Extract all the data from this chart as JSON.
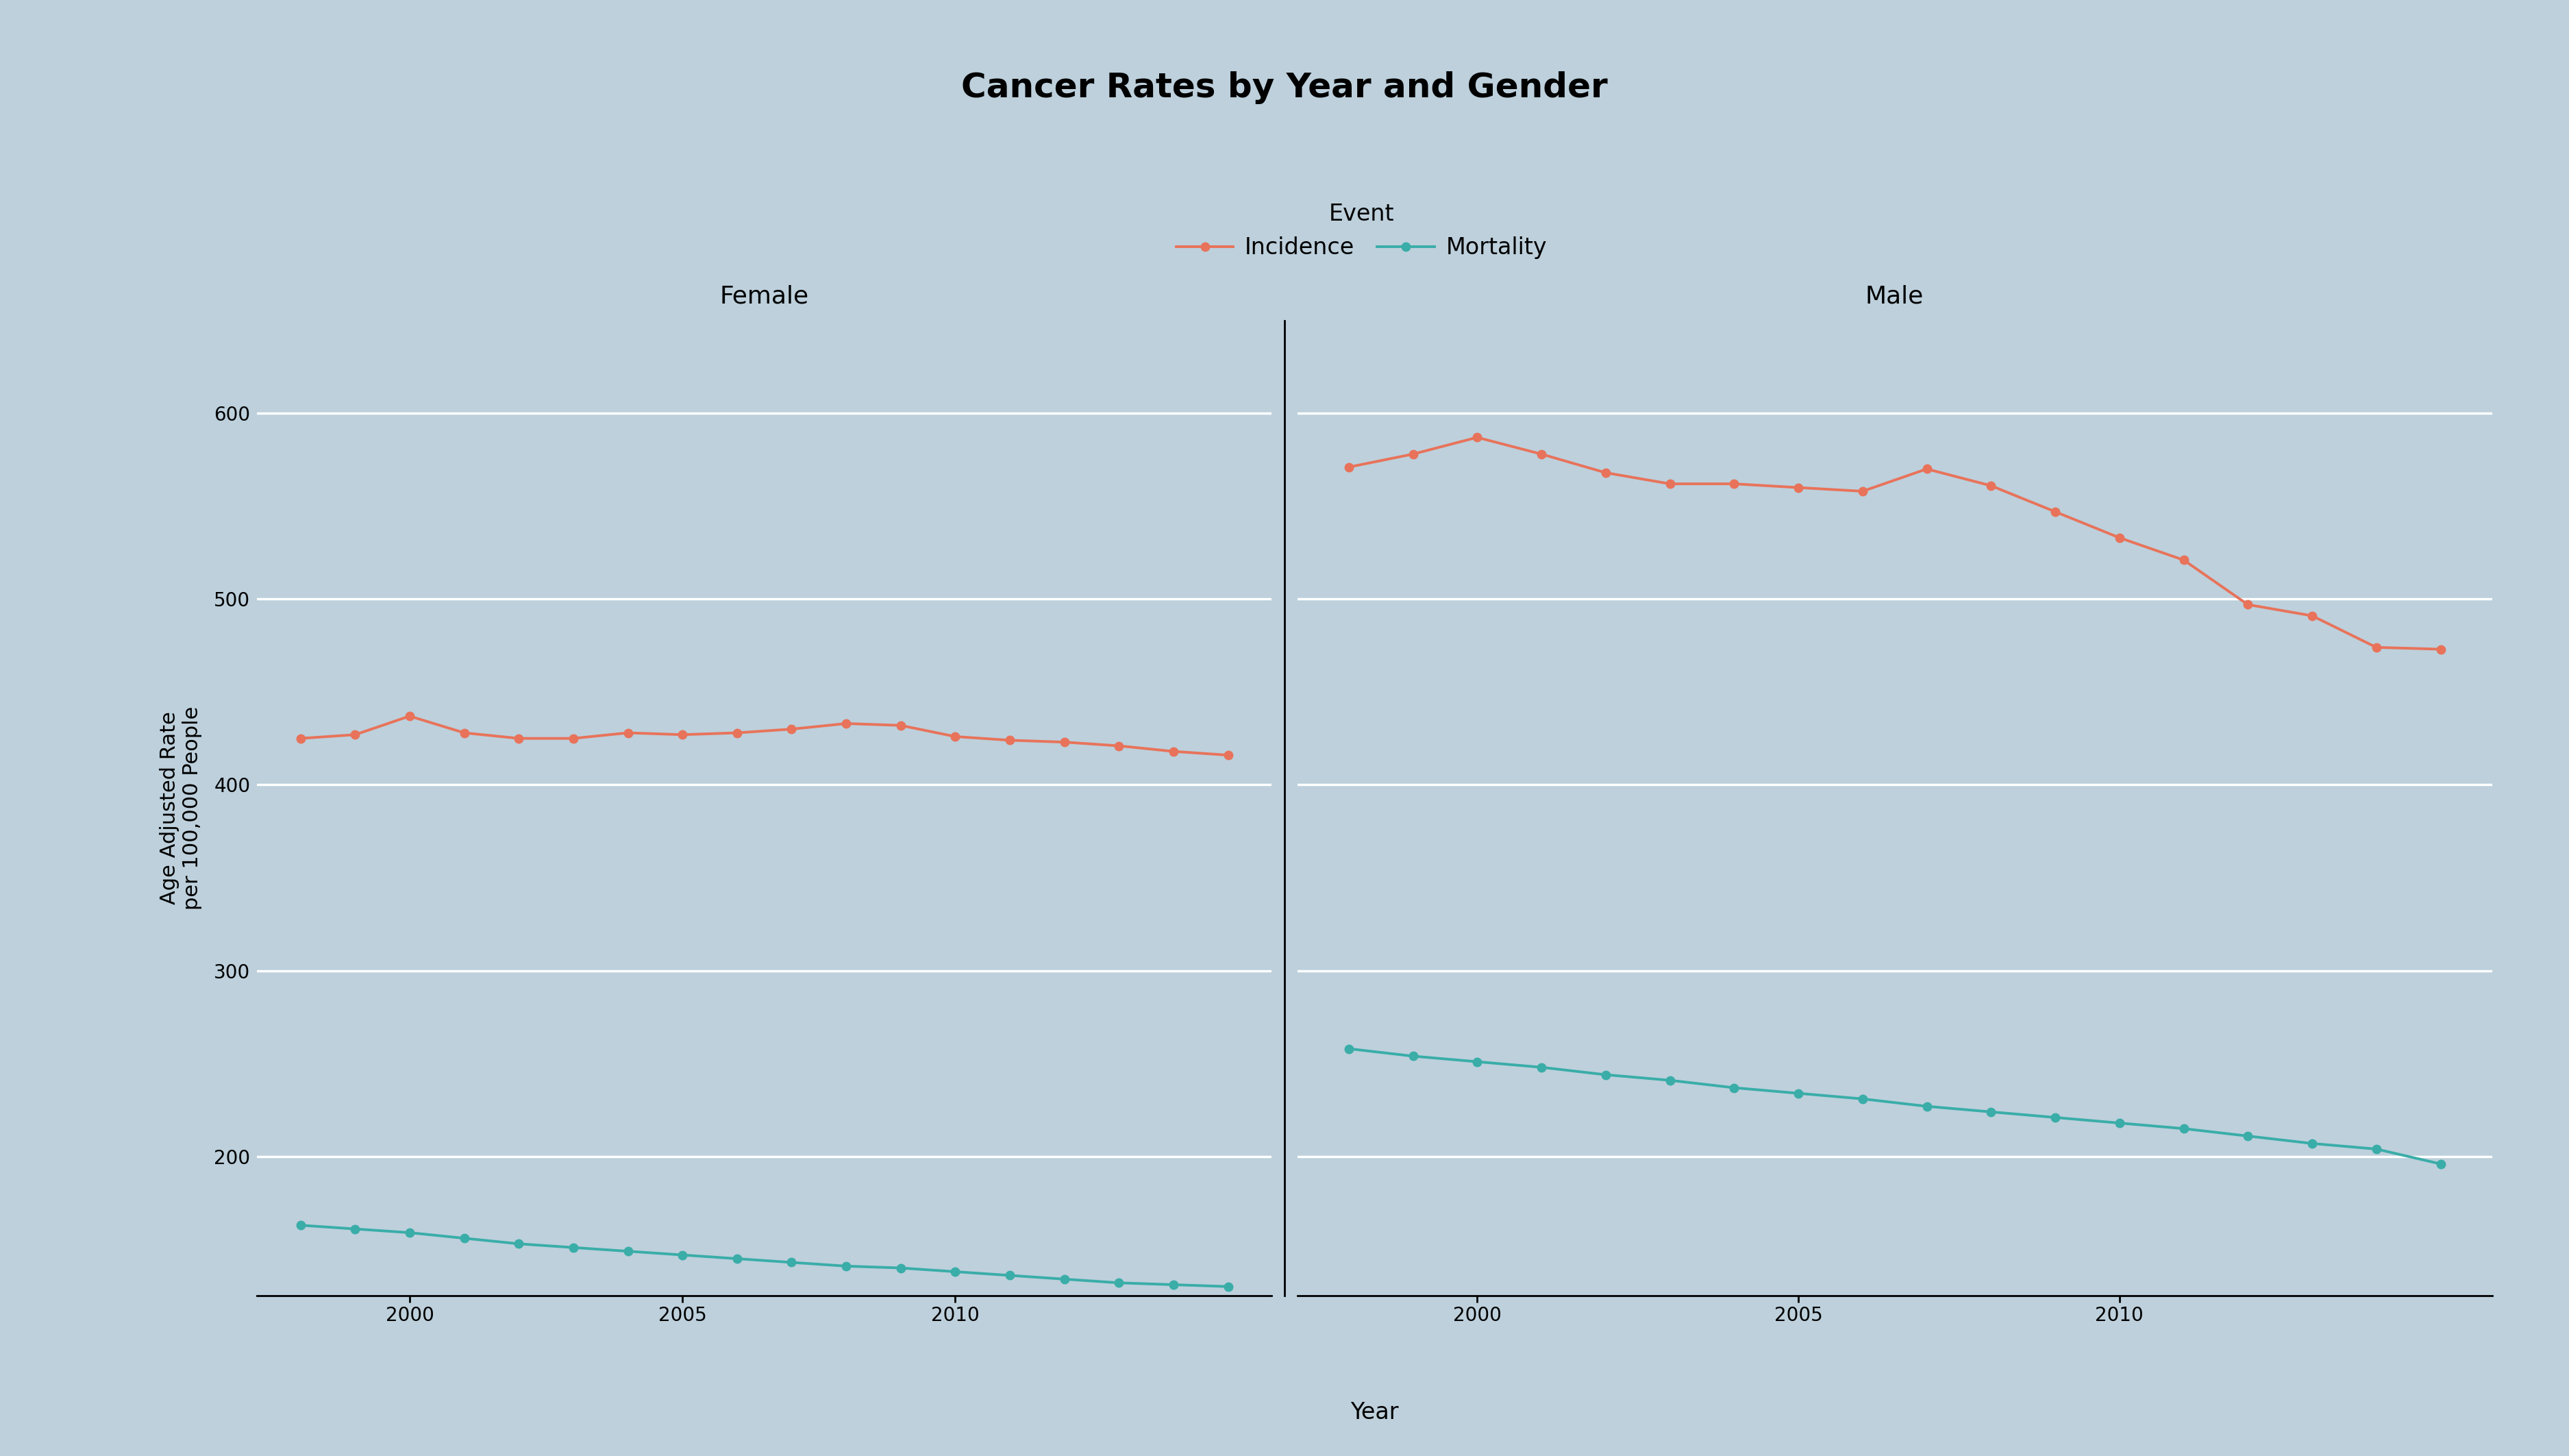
{
  "title": "Cancer Rates by Year and Gender",
  "xlabel": "Year",
  "ylabel": "Age Adjusted Rate\nper 100,000 People",
  "legend_title": "Event",
  "legend_entries": [
    "Incidence",
    "Mortality"
  ],
  "incidence_color": "#E8735A",
  "mortality_color": "#3AADA8",
  "background_color": "#BDD0DC",
  "panel_background": "#BDD0DC",
  "grid_color": "#FFFFFF",
  "years": [
    1998,
    1999,
    2000,
    2001,
    2002,
    2003,
    2004,
    2005,
    2006,
    2007,
    2008,
    2009,
    2010,
    2011,
    2012,
    2013,
    2014,
    2015
  ],
  "female_incidence": [
    425,
    427,
    437,
    428,
    425,
    425,
    428,
    427,
    428,
    430,
    433,
    432,
    426,
    424,
    423,
    421,
    418,
    416
  ],
  "female_mortality": [
    163,
    161,
    159,
    156,
    153,
    151,
    149,
    147,
    145,
    143,
    141,
    140,
    138,
    136,
    134,
    132,
    131,
    130
  ],
  "male_incidence": [
    571,
    578,
    587,
    578,
    568,
    562,
    562,
    560,
    558,
    570,
    561,
    547,
    533,
    521,
    497,
    491,
    474,
    473
  ],
  "male_mortality": [
    258,
    254,
    251,
    248,
    244,
    241,
    237,
    234,
    231,
    227,
    224,
    221,
    218,
    215,
    211,
    207,
    204,
    196
  ],
  "ylim": [
    125,
    650
  ],
  "yticks": [
    200,
    300,
    400,
    500,
    600
  ],
  "title_fontsize": 36,
  "axis_fontsize": 22,
  "tick_fontsize": 20,
  "panel_label_fontsize": 26,
  "legend_fontsize": 24
}
